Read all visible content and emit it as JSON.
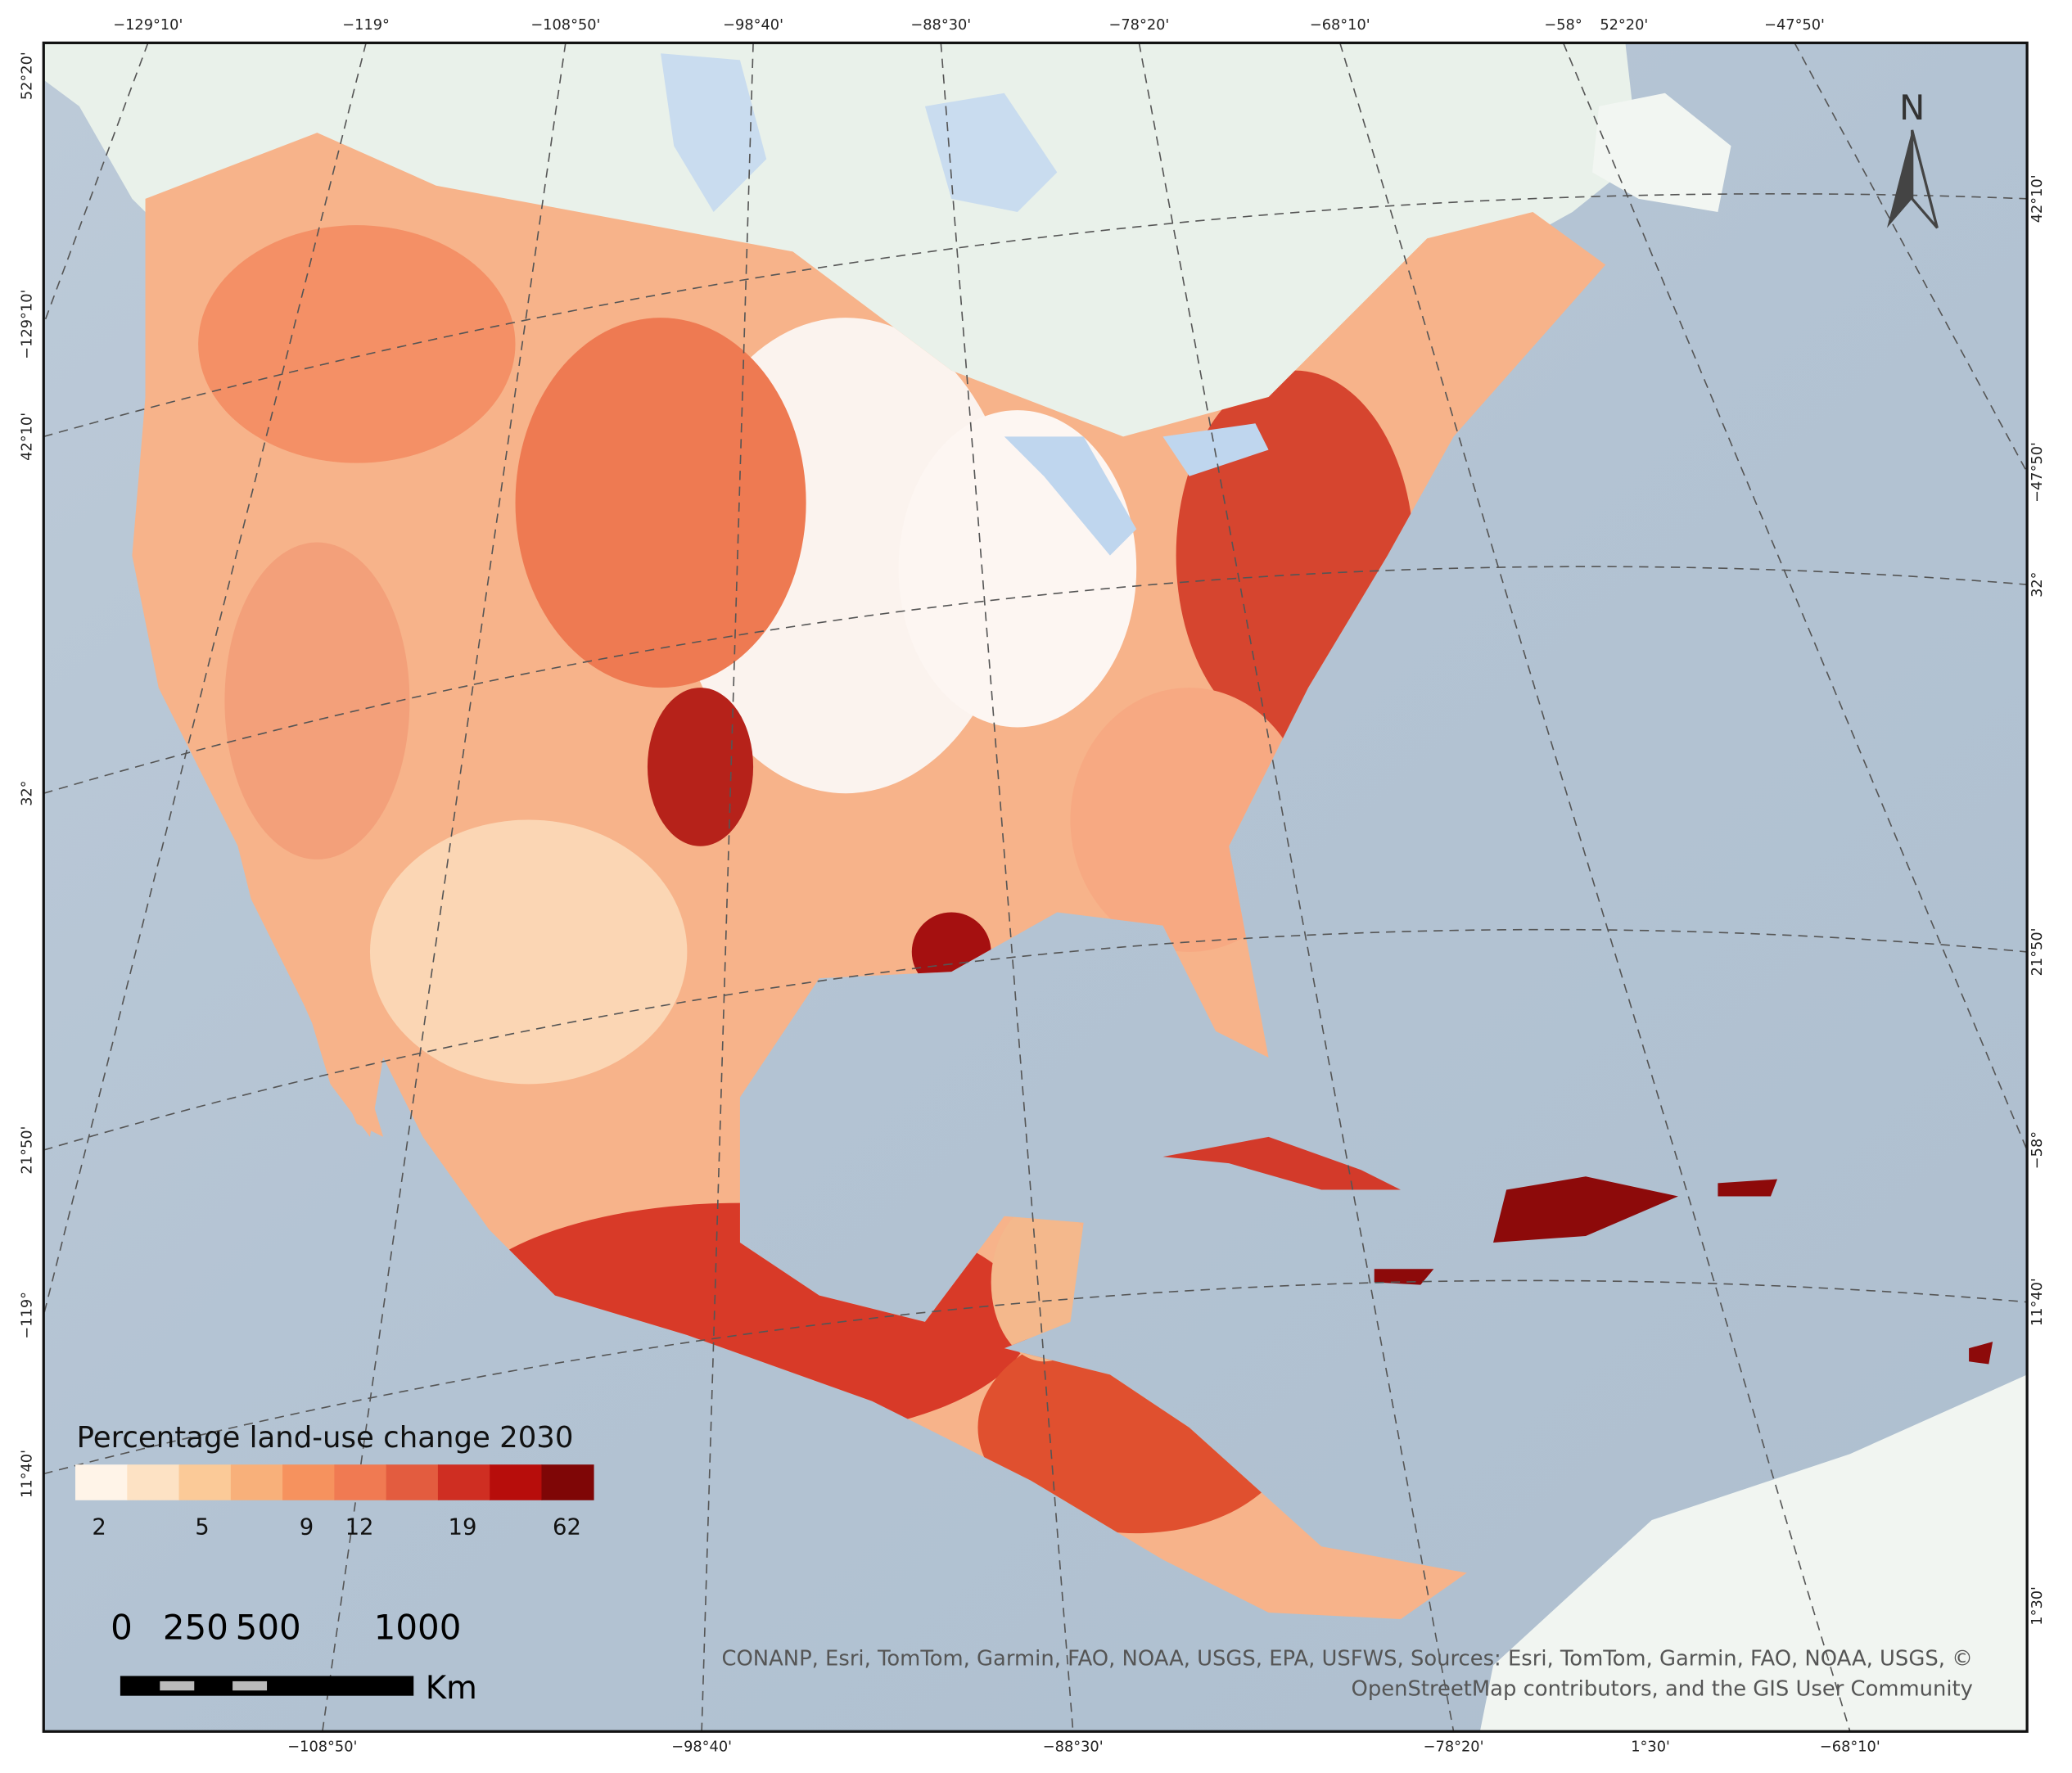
{
  "map": {
    "graticule_labels": {
      "top": [
        "−129°10'",
        "−119°",
        "−108°50'",
        "−98°40'",
        "−88°30'",
        "−78°20'",
        "−68°10'",
        "−58°",
        "52°20'",
        "−47°50'"
      ],
      "bottom": [
        "−108°50'",
        "−98°40'",
        "−88°30'",
        "−78°20'",
        "1°30'",
        "−68°10'"
      ],
      "left": [
        "52°20'",
        "−129°10'",
        "42°10'",
        "32°",
        "21°50'",
        "−119°",
        "11°40'"
      ],
      "right": [
        "42°10'",
        "−47°50'",
        "32°",
        "21°50'",
        "−58°",
        "11°40'",
        "1°30'"
      ]
    },
    "north_label": "N",
    "legend": {
      "title": "Percentage land-use change 2030",
      "colors": [
        "#fff4e8",
        "#fde2c4",
        "#fbca98",
        "#f8b07a",
        "#f6925e",
        "#f07a52",
        "#e35c3f",
        "#cf2e22",
        "#b70d0b",
        "#7f0606"
      ],
      "labels": [
        "2",
        "5",
        "9",
        "12",
        "19",
        "62"
      ]
    },
    "scale_bar": {
      "labels": [
        "0",
        "250",
        "500",
        "1000"
      ],
      "unit": "Km"
    },
    "attribution": [
      "CONANP, Esri, TomTom, Garmin, FAO, NOAA, USGS, EPA, USFWS, Sources: Esri, TomTom, Garmin, FAO, NOAA, USGS, ©",
      "OpenStreetMap contributors, and the GIS User Community"
    ]
  }
}
